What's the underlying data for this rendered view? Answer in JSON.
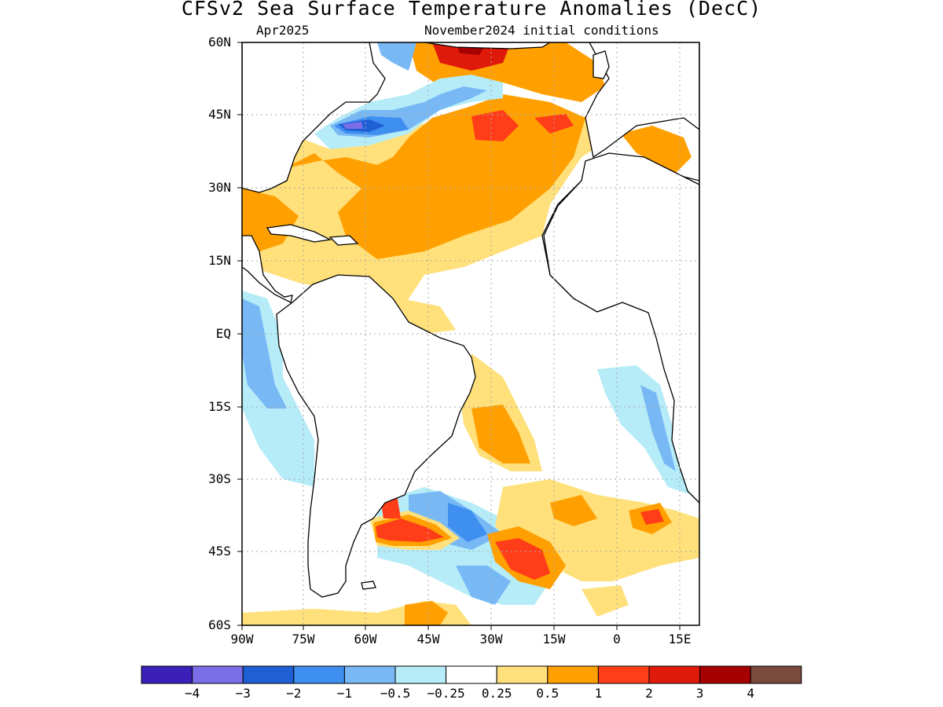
{
  "title": "CFSv2 Sea Surface Temperature Anomalies (DecC)",
  "valid_month": "Apr2025",
  "initial_conditions": "November2024 initial conditions",
  "lat_labels": [
    "60N",
    "45N",
    "30N",
    "15N",
    "EQ",
    "15S",
    "30S",
    "45S",
    "60S"
  ],
  "lon_labels": [
    "90W",
    "75W",
    "60W",
    "45W",
    "30W",
    "15W",
    "0",
    "15E"
  ],
  "legend": {
    "colors": [
      "#3a1fb8",
      "#7b6ee8",
      "#1f5fd6",
      "#3f8ff0",
      "#78b8f5",
      "#b5ecf7",
      "#ffffff",
      "#ffe07a",
      "#ffa000",
      "#ff3d18",
      "#e01a0a",
      "#a60000",
      "#7a4a3c"
    ],
    "labels": [
      "-4",
      "-3",
      "-2",
      "-1",
      "-0.5",
      "-0.25",
      "0.25",
      "0.5",
      "1",
      "2",
      "3",
      "4"
    ]
  },
  "colors": {
    "land": "#ffffff",
    "coast": "#000000",
    "grid": "#aaaaaa"
  }
}
